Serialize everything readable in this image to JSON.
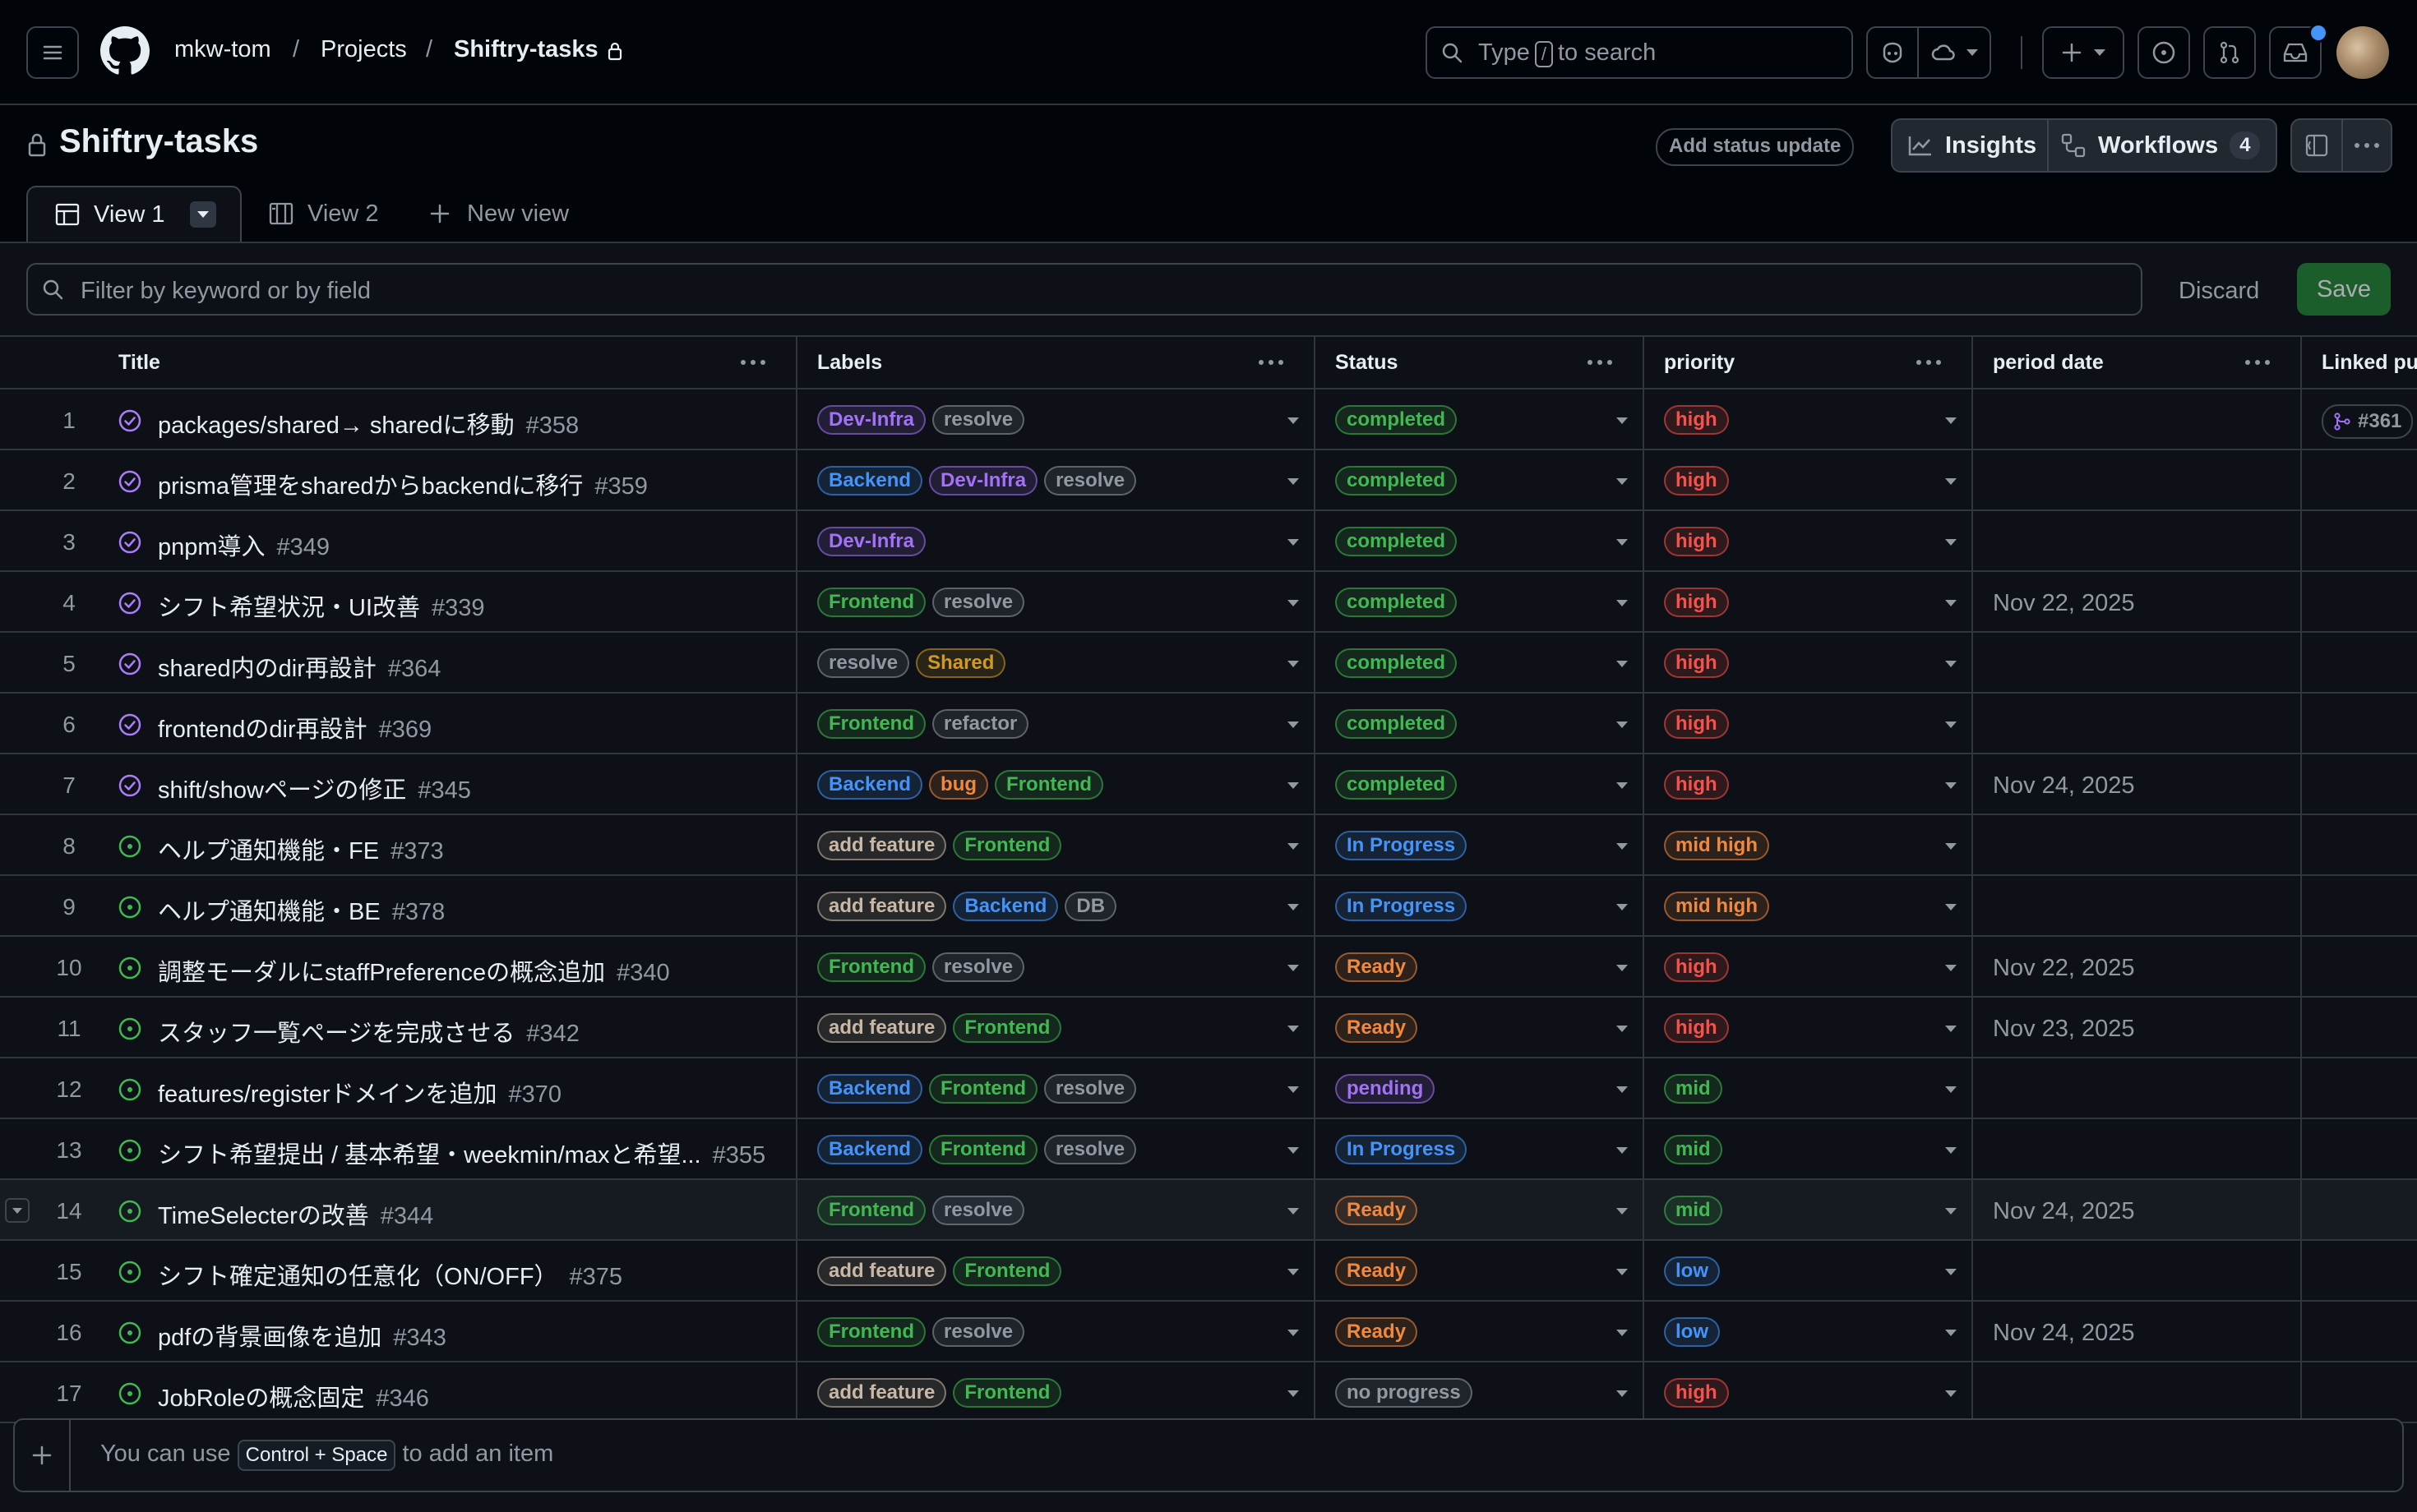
{
  "topbar": {
    "breadcrumb": [
      "mkw-tom",
      "Projects",
      "Shiftry-tasks"
    ],
    "search": {
      "prefix": "Type",
      "key": "/",
      "suffix": "to search"
    }
  },
  "project": {
    "title": "Shiftry-tasks",
    "add_status_update": "Add status update",
    "insights": "Insights",
    "workflows": "Workflows",
    "workflows_count": "4"
  },
  "tabs": [
    {
      "label": "View 1",
      "active": true,
      "icon": "table-icon"
    },
    {
      "label": "View 2",
      "active": false,
      "icon": "board-icon"
    },
    {
      "label": "New view",
      "active": false,
      "icon": "plus-icon"
    }
  ],
  "filter": {
    "placeholder": "Filter by keyword or by field",
    "discard": "Discard",
    "save": "Save"
  },
  "columns": [
    "Title",
    "Labels",
    "Status",
    "priority",
    "period date",
    "Linked pu"
  ],
  "label_colors": {
    "Dev-Infra": "#a371f7",
    "resolve": "#9198a1",
    "Backend": "#4493f8",
    "Frontend": "#3fb950",
    "Shared": "#d29922",
    "refactor": "#9198a1",
    "bug": "#f0883e",
    "add feature": "#c9b8a6",
    "DB": "#9198a1"
  },
  "status_colors": {
    "completed": "#3fb950",
    "In Progress": "#4493f8",
    "Ready": "#f0883e",
    "pending": "#a371f7",
    "no progress": "#9198a1"
  },
  "priority_colors": {
    "high": "#f85149",
    "mid high": "#f0883e",
    "mid": "#3fb950",
    "low": "#4493f8"
  },
  "rows": [
    {
      "n": "1",
      "title": "packages/shared→ sharedに移動",
      "issue": "#358",
      "labels": [
        "Dev-Infra",
        "resolve"
      ],
      "status": "completed",
      "priority": "high",
      "date": "",
      "linked": "#361",
      "closed": true
    },
    {
      "n": "2",
      "title": "prisma管理をsharedからbackendに移行",
      "issue": "#359",
      "labels": [
        "Backend",
        "Dev-Infra",
        "resolve"
      ],
      "status": "completed",
      "priority": "high",
      "date": "",
      "linked": "",
      "closed": true
    },
    {
      "n": "3",
      "title": "pnpm導入",
      "issue": "#349",
      "labels": [
        "Dev-Infra"
      ],
      "status": "completed",
      "priority": "high",
      "date": "",
      "linked": "",
      "closed": true
    },
    {
      "n": "4",
      "title": "シフト希望状況・UI改善",
      "issue": "#339",
      "labels": [
        "Frontend",
        "resolve"
      ],
      "status": "completed",
      "priority": "high",
      "date": "Nov 22, 2025",
      "linked": "",
      "closed": true
    },
    {
      "n": "5",
      "title": "shared内のdir再設計",
      "issue": "#364",
      "labels": [
        "resolve",
        "Shared"
      ],
      "status": "completed",
      "priority": "high",
      "date": "",
      "linked": "",
      "closed": true
    },
    {
      "n": "6",
      "title": "frontendのdir再設計",
      "issue": "#369",
      "labels": [
        "Frontend",
        "refactor"
      ],
      "status": "completed",
      "priority": "high",
      "date": "",
      "linked": "",
      "closed": true
    },
    {
      "n": "7",
      "title": "shift/showページの修正",
      "issue": "#345",
      "labels": [
        "Backend",
        "bug",
        "Frontend"
      ],
      "status": "completed",
      "priority": "high",
      "date": "Nov 24, 2025",
      "linked": "",
      "closed": true
    },
    {
      "n": "8",
      "title": "ヘルプ通知機能・FE",
      "issue": "#373",
      "labels": [
        "add feature",
        "Frontend"
      ],
      "status": "In Progress",
      "priority": "mid high",
      "date": "",
      "linked": "",
      "closed": false
    },
    {
      "n": "9",
      "title": "ヘルプ通知機能・BE",
      "issue": "#378",
      "labels": [
        "add feature",
        "Backend",
        "DB"
      ],
      "status": "In Progress",
      "priority": "mid high",
      "date": "",
      "linked": "",
      "closed": false
    },
    {
      "n": "10",
      "title": "調整モーダルにstaffPreferenceの概念追加",
      "issue": "#340",
      "labels": [
        "Frontend",
        "resolve"
      ],
      "status": "Ready",
      "priority": "high",
      "date": "Nov 22, 2025",
      "linked": "",
      "closed": false
    },
    {
      "n": "11",
      "title": "スタッフ一覧ページを完成させる",
      "issue": "#342",
      "labels": [
        "add feature",
        "Frontend"
      ],
      "status": "Ready",
      "priority": "high",
      "date": "Nov 23, 2025",
      "linked": "",
      "closed": false
    },
    {
      "n": "12",
      "title": "features/registerドメインを追加",
      "issue": "#370",
      "labels": [
        "Backend",
        "Frontend",
        "resolve"
      ],
      "status": "pending",
      "priority": "mid",
      "date": "",
      "linked": "",
      "closed": false
    },
    {
      "n": "13",
      "title": "シフト希望提出 / 基本希望・weekmin/maxと希望...",
      "issue": "#355",
      "labels": [
        "Backend",
        "Frontend",
        "resolve"
      ],
      "status": "In Progress",
      "priority": "mid",
      "date": "",
      "linked": "",
      "closed": false
    },
    {
      "n": "14",
      "title": "TimeSelecterの改善",
      "issue": "#344",
      "labels": [
        "Frontend",
        "resolve"
      ],
      "status": "Ready",
      "priority": "mid",
      "date": "Nov 24, 2025",
      "linked": "",
      "closed": false
    },
    {
      "n": "15",
      "title": "シフト確定通知の任意化（ON/OFF）",
      "issue": "#375",
      "labels": [
        "add feature",
        "Frontend"
      ],
      "status": "Ready",
      "priority": "low",
      "date": "",
      "linked": "",
      "closed": false
    },
    {
      "n": "16",
      "title": "pdfの背景画像を追加",
      "issue": "#343",
      "labels": [
        "Frontend",
        "resolve"
      ],
      "status": "Ready",
      "priority": "low",
      "date": "Nov 24, 2025",
      "linked": "",
      "closed": false
    },
    {
      "n": "17",
      "title": "JobRoleの概念固定",
      "issue": "#346",
      "labels": [
        "add feature",
        "Frontend"
      ],
      "status": "no progress",
      "priority": "high",
      "date": "",
      "linked": "",
      "closed": false
    }
  ],
  "footer": {
    "prefix": "You can use",
    "shortcut": "Control + Space",
    "suffix": "to add an item"
  }
}
